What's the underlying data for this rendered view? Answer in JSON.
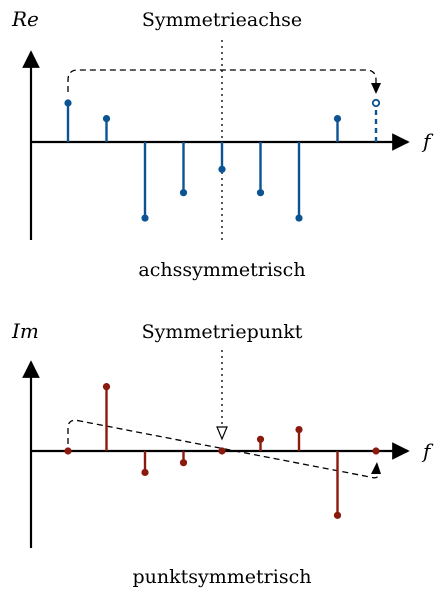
{
  "top_panel": {
    "axis_y_label": "Re",
    "axis_x_label": "f",
    "center_label": "Symmetrieachse",
    "caption": "achssymmetrisch",
    "stem_color": "#0b5393",
    "stems": [
      {
        "pos": -4,
        "value": 1.0
      },
      {
        "pos": -3,
        "value": 0.6
      },
      {
        "pos": -2,
        "value": -1.95
      },
      {
        "pos": -1,
        "value": -1.3
      },
      {
        "pos": 0,
        "value": -0.7
      },
      {
        "pos": 1,
        "value": -1.3
      },
      {
        "pos": 2,
        "value": -1.95
      },
      {
        "pos": 3,
        "value": 0.6
      }
    ],
    "mirrored_stem": {
      "pos": 4,
      "value": 1.0
    }
  },
  "bottom_panel": {
    "axis_y_label": "Im",
    "axis_x_label": "f",
    "center_label": "Symmetriepunkt",
    "caption": "punktsymmetrisch",
    "stem_color": "#8b1a0e",
    "stems": [
      {
        "pos": -4,
        "value": 0.0
      },
      {
        "pos": -3,
        "value": 1.65
      },
      {
        "pos": -2,
        "value": -0.55
      },
      {
        "pos": -1,
        "value": -0.3
      },
      {
        "pos": 0,
        "value": 0.0
      },
      {
        "pos": 1,
        "value": 0.3
      },
      {
        "pos": 2,
        "value": 0.55
      },
      {
        "pos": 3,
        "value": -1.65
      },
      {
        "pos": 4,
        "value": 0.0
      }
    ]
  }
}
